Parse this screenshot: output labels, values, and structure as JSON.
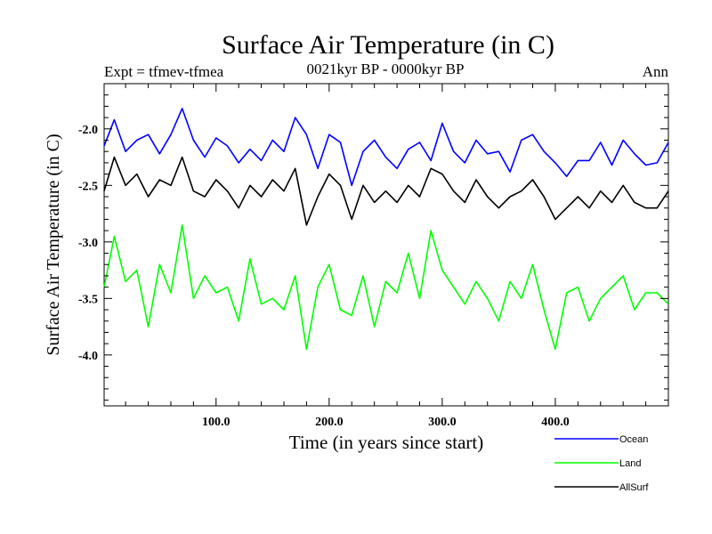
{
  "chart_data": {
    "type": "line",
    "title": "Surface Air Temperature (in C)",
    "subtitle": "0021kyr BP - 0000kyr BP",
    "left_label": "Expt = tfmev-tfmea",
    "right_label": "Ann",
    "xlabel": "Time (in years since start)",
    "ylabel": "Surface Air Temperature (in C)",
    "xlim": [
      1,
      500
    ],
    "ylim": [
      -4.45,
      -1.6
    ],
    "x_ticks": [
      100,
      200,
      300,
      400
    ],
    "x_tick_labels": [
      "100.0",
      "200.0",
      "300.0",
      "400.0"
    ],
    "y_ticks": [
      -4.0,
      -3.5,
      -3.0,
      -2.5,
      -2.0
    ],
    "y_tick_labels": [
      "-4.0",
      "-3.5",
      "-3.0",
      "-2.5",
      "-2.0"
    ],
    "legend_position": "bottom-right",
    "series": [
      {
        "name": "Ocean",
        "color": "#0000ff",
        "x": [
          1,
          10,
          20,
          30,
          40,
          50,
          60,
          70,
          80,
          90,
          100,
          110,
          120,
          130,
          140,
          150,
          160,
          170,
          180,
          190,
          200,
          210,
          220,
          230,
          240,
          250,
          260,
          270,
          280,
          290,
          300,
          310,
          320,
          330,
          340,
          350,
          360,
          370,
          380,
          390,
          400,
          410,
          420,
          430,
          440,
          450,
          460,
          470,
          480,
          490,
          500
        ],
        "values": [
          -2.15,
          -1.92,
          -2.2,
          -2.1,
          -2.05,
          -2.22,
          -2.05,
          -1.82,
          -2.1,
          -2.25,
          -2.08,
          -2.15,
          -2.3,
          -2.18,
          -2.28,
          -2.1,
          -2.2,
          -1.9,
          -2.05,
          -2.35,
          -2.05,
          -2.12,
          -2.5,
          -2.2,
          -2.1,
          -2.25,
          -2.35,
          -2.18,
          -2.12,
          -2.28,
          -1.95,
          -2.2,
          -2.3,
          -2.1,
          -2.22,
          -2.2,
          -2.38,
          -2.1,
          -2.05,
          -2.2,
          -2.3,
          -2.42,
          -2.28,
          -2.28,
          -2.12,
          -2.32,
          -2.1,
          -2.22,
          -2.32,
          -2.3,
          -2.12
        ]
      },
      {
        "name": "Land",
        "color": "#00ff00",
        "x": [
          1,
          10,
          20,
          30,
          40,
          50,
          60,
          70,
          80,
          90,
          100,
          110,
          120,
          130,
          140,
          150,
          160,
          170,
          180,
          190,
          200,
          210,
          220,
          230,
          240,
          250,
          260,
          270,
          280,
          290,
          300,
          310,
          320,
          330,
          340,
          350,
          360,
          370,
          380,
          390,
          400,
          410,
          420,
          430,
          440,
          450,
          460,
          470,
          480,
          490,
          500
        ],
        "values": [
          -3.4,
          -2.95,
          -3.35,
          -3.25,
          -3.75,
          -3.2,
          -3.45,
          -2.85,
          -3.5,
          -3.3,
          -3.45,
          -3.4,
          -3.7,
          -3.15,
          -3.55,
          -3.5,
          -3.6,
          -3.3,
          -3.95,
          -3.4,
          -3.2,
          -3.6,
          -3.65,
          -3.3,
          -3.75,
          -3.35,
          -3.45,
          -3.1,
          -3.5,
          -2.9,
          -3.25,
          -3.4,
          -3.55,
          -3.35,
          -3.5,
          -3.7,
          -3.35,
          -3.5,
          -3.2,
          -3.6,
          -3.95,
          -3.45,
          -3.4,
          -3.7,
          -3.5,
          -3.4,
          -3.3,
          -3.6,
          -3.45,
          -3.45,
          -3.55
        ]
      },
      {
        "name": "AllSurf",
        "color": "#000000",
        "x": [
          1,
          10,
          20,
          30,
          40,
          50,
          60,
          70,
          80,
          90,
          100,
          110,
          120,
          130,
          140,
          150,
          160,
          170,
          180,
          190,
          200,
          210,
          220,
          230,
          240,
          250,
          260,
          270,
          280,
          290,
          300,
          310,
          320,
          330,
          340,
          350,
          360,
          370,
          380,
          390,
          400,
          410,
          420,
          430,
          440,
          450,
          460,
          470,
          480,
          490,
          500
        ],
        "values": [
          -2.55,
          -2.25,
          -2.5,
          -2.4,
          -2.6,
          -2.45,
          -2.5,
          -2.25,
          -2.55,
          -2.6,
          -2.45,
          -2.55,
          -2.7,
          -2.5,
          -2.6,
          -2.45,
          -2.55,
          -2.35,
          -2.85,
          -2.6,
          -2.4,
          -2.5,
          -2.8,
          -2.5,
          -2.65,
          -2.55,
          -2.65,
          -2.5,
          -2.6,
          -2.35,
          -2.4,
          -2.55,
          -2.65,
          -2.45,
          -2.6,
          -2.7,
          -2.6,
          -2.55,
          -2.45,
          -2.6,
          -2.8,
          -2.7,
          -2.6,
          -2.7,
          -2.55,
          -2.65,
          -2.5,
          -2.65,
          -2.7,
          -2.7,
          -2.55
        ]
      }
    ]
  }
}
